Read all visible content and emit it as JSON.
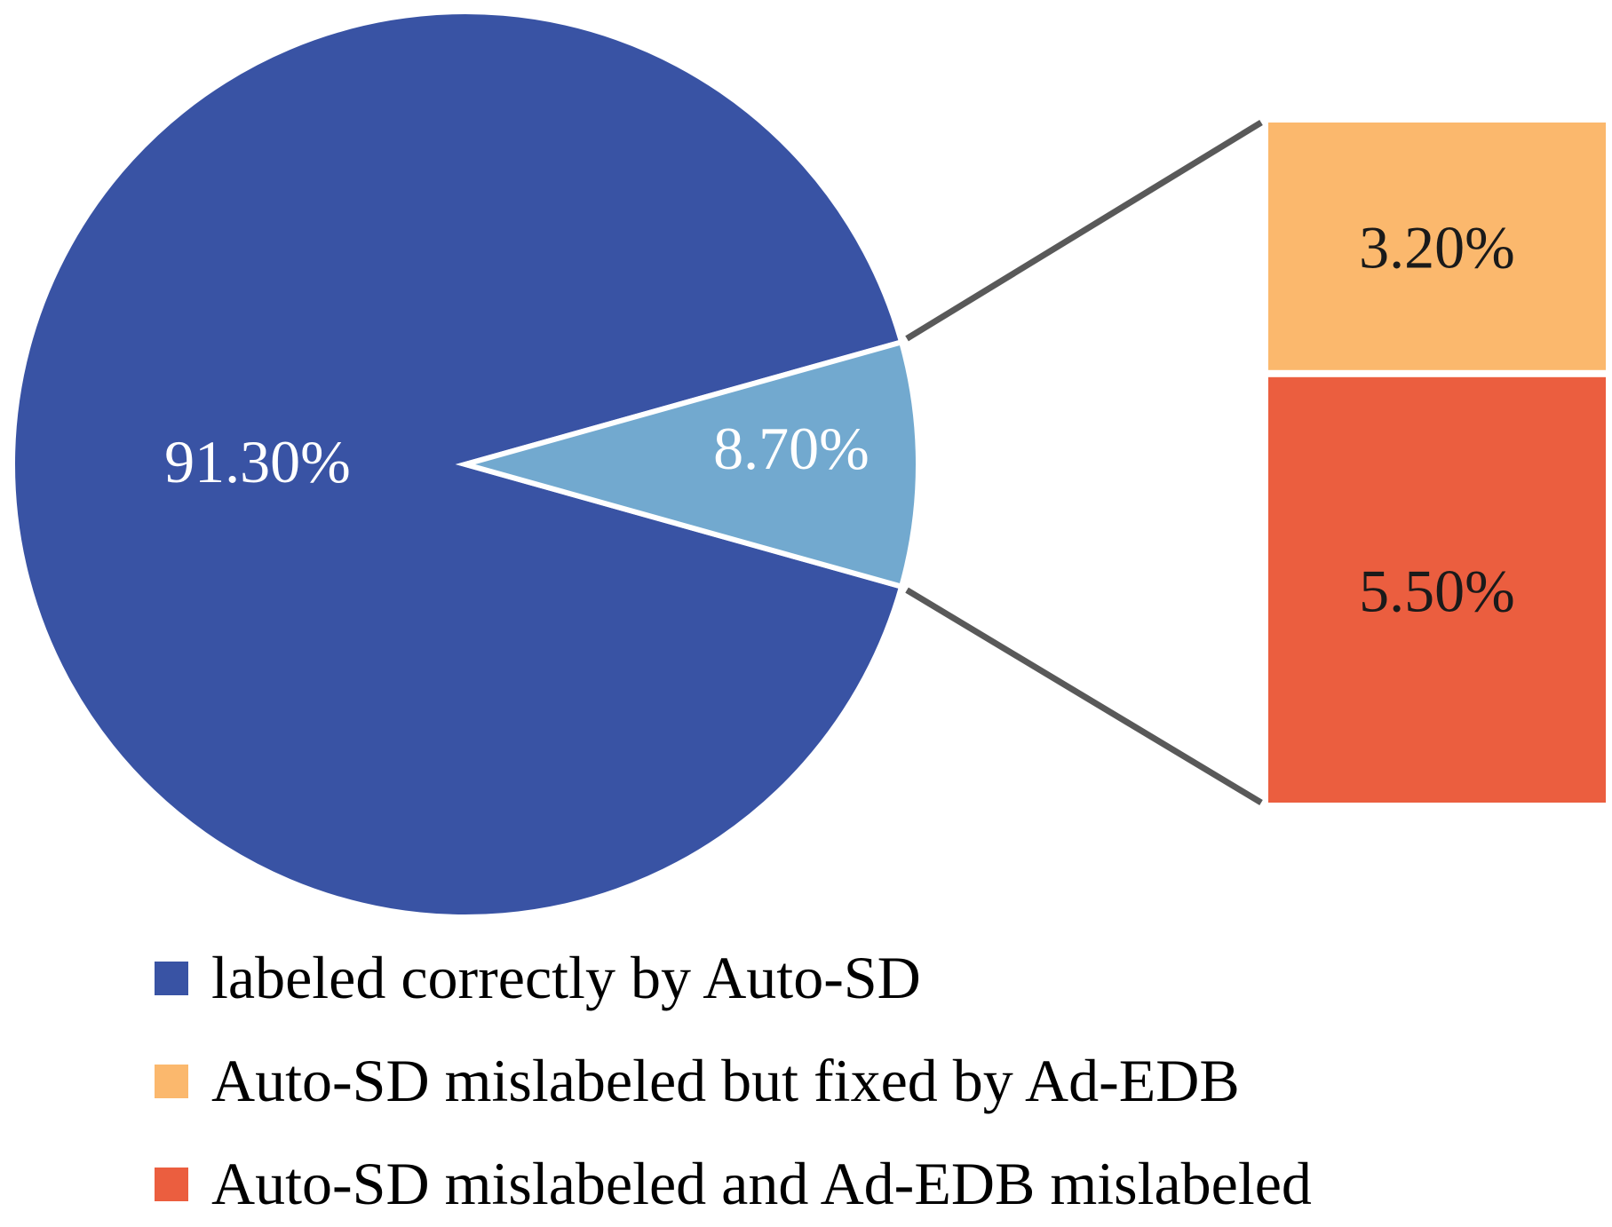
{
  "chart_data": {
    "type": "pie",
    "slices": [
      {
        "label": "labeled correctly by Auto-SD",
        "value": 91.3,
        "display": "91.30%",
        "color": "#3953A4"
      },
      {
        "label": "",
        "value": 8.7,
        "display": "8.70%",
        "color": "#72A9CF"
      }
    ],
    "breakdown": {
      "type": "stacked-bar",
      "of_slice": "8.70%",
      "segments": [
        {
          "label": "Auto-SD mislabeled but fixed by Ad-EDB",
          "value": 3.2,
          "display": "3.20%",
          "color": "#FBB86D"
        },
        {
          "label": "Auto-SD mislabeled and Ad-EDB mislabeled",
          "value": 5.5,
          "display": "5.50%",
          "color": "#EB5E3F"
        }
      ]
    },
    "legend": [
      {
        "label": "labeled correctly by Auto-SD",
        "color": "#3953A4"
      },
      {
        "label": "Auto-SD mislabeled but fixed by Ad-EDB",
        "color": "#FBB86D"
      },
      {
        "label": "Auto-SD mislabeled and Ad-EDB mislabeled",
        "color": "#EB5E3F"
      }
    ],
    "legend_position": "bottom",
    "connector_color": "#595959"
  }
}
